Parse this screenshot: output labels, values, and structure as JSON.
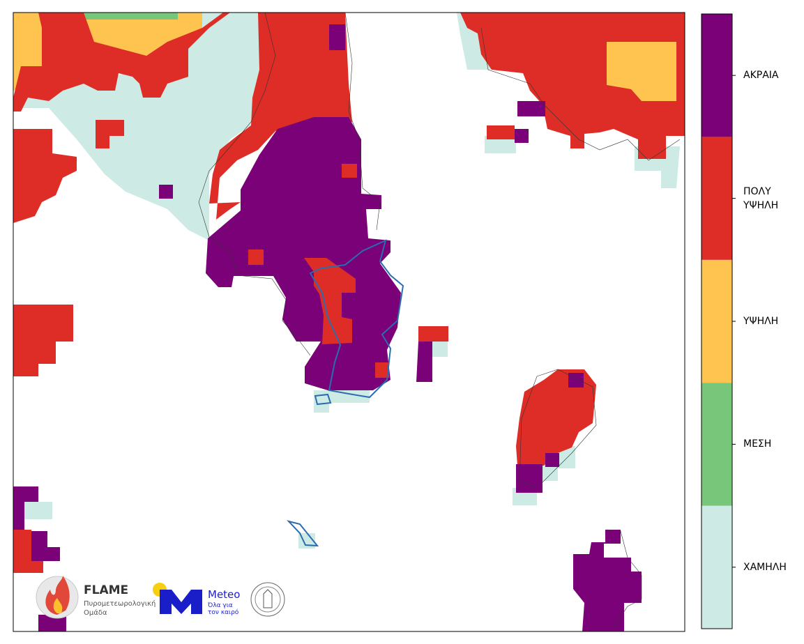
{
  "legend": {
    "levels": [
      {
        "label": "ΧΑΜΗΛΗ",
        "color": "#cdebe4"
      },
      {
        "label": "ΜΕΣΗ",
        "color": "#78c679"
      },
      {
        "label": "ΥΨΗΛΗ",
        "color": "#fec44f"
      },
      {
        "label": "ΠΟΛΥ\nΥΨΗΛΗ",
        "color": "#de2d26"
      },
      {
        "label": "ΑΚΡΑΙΑ",
        "color": "#7a0177"
      }
    ]
  },
  "logos": {
    "flame": {
      "name": "FLAME",
      "line1": "Πυρομετεωρολογική",
      "line2": "Ομάδα"
    },
    "meteo": {
      "name": "Meteo",
      "line1": "Όλα για",
      "line2": "τον καιρό"
    }
  }
}
